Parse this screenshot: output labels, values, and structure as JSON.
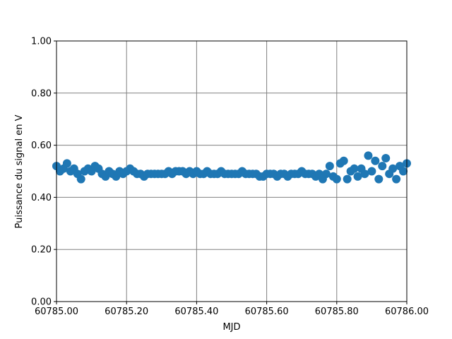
{
  "chart_data": {
    "type": "scatter",
    "xlabel": "MJD",
    "ylabel": "Puissance du signal en V",
    "color": "#1f77b4",
    "grid": true,
    "xlim": [
      60785.0,
      60786.0
    ],
    "ylim": [
      0.0,
      1.0
    ],
    "xticks": [
      {
        "value": 60785.0,
        "label": "60785.00"
      },
      {
        "value": 60785.2,
        "label": "60785.20"
      },
      {
        "value": 60785.4,
        "label": "60785.40"
      },
      {
        "value": 60785.6,
        "label": "60785.60"
      },
      {
        "value": 60785.8,
        "label": "60785.80"
      },
      {
        "value": 60786.0,
        "label": "60786.00"
      }
    ],
    "yticks": [
      {
        "value": 0.0,
        "label": "0.00"
      },
      {
        "value": 0.2,
        "label": "0.20"
      },
      {
        "value": 0.4,
        "label": "0.40"
      },
      {
        "value": 0.6,
        "label": "0.60"
      },
      {
        "value": 0.8,
        "label": "0.80"
      },
      {
        "value": 1.0,
        "label": "1.00"
      }
    ],
    "x": [
      60785.0,
      60785.01,
      60785.02,
      60785.03,
      60785.04,
      60785.05,
      60785.06,
      60785.07,
      60785.08,
      60785.09,
      60785.1,
      60785.11,
      60785.12,
      60785.13,
      60785.14,
      60785.15,
      60785.16,
      60785.17,
      60785.18,
      60785.19,
      60785.2,
      60785.21,
      60785.22,
      60785.23,
      60785.24,
      60785.25,
      60785.26,
      60785.27,
      60785.28,
      60785.29,
      60785.3,
      60785.31,
      60785.32,
      60785.33,
      60785.34,
      60785.35,
      60785.36,
      60785.37,
      60785.38,
      60785.39,
      60785.4,
      60785.41,
      60785.42,
      60785.43,
      60785.44,
      60785.45,
      60785.46,
      60785.47,
      60785.48,
      60785.49,
      60785.5,
      60785.51,
      60785.52,
      60785.53,
      60785.54,
      60785.55,
      60785.56,
      60785.57,
      60785.58,
      60785.59,
      60785.6,
      60785.61,
      60785.62,
      60785.63,
      60785.64,
      60785.65,
      60785.66,
      60785.67,
      60785.68,
      60785.69,
      60785.7,
      60785.71,
      60785.72,
      60785.73,
      60785.74,
      60785.75,
      60785.76,
      60785.77,
      60785.78,
      60785.79,
      60785.8,
      60785.81,
      60785.82,
      60785.83,
      60785.84,
      60785.85,
      60785.86,
      60785.87,
      60785.88,
      60785.89,
      60785.9,
      60785.91,
      60785.92,
      60785.93,
      60785.94,
      60785.95,
      60785.96,
      60785.97,
      60785.98,
      60785.99,
      60786.0
    ],
    "values": [
      0.52,
      0.5,
      0.51,
      0.53,
      0.5,
      0.51,
      0.49,
      0.47,
      0.5,
      0.51,
      0.5,
      0.52,
      0.51,
      0.49,
      0.48,
      0.5,
      0.49,
      0.48,
      0.5,
      0.49,
      0.5,
      0.51,
      0.5,
      0.49,
      0.49,
      0.48,
      0.49,
      0.49,
      0.49,
      0.49,
      0.49,
      0.49,
      0.5,
      0.49,
      0.5,
      0.5,
      0.5,
      0.49,
      0.5,
      0.49,
      0.5,
      0.49,
      0.49,
      0.5,
      0.49,
      0.49,
      0.49,
      0.5,
      0.49,
      0.49,
      0.49,
      0.49,
      0.49,
      0.5,
      0.49,
      0.49,
      0.49,
      0.49,
      0.48,
      0.48,
      0.49,
      0.49,
      0.49,
      0.48,
      0.49,
      0.49,
      0.48,
      0.49,
      0.49,
      0.49,
      0.5,
      0.49,
      0.49,
      0.49,
      0.48,
      0.49,
      0.47,
      0.49,
      0.52,
      0.48,
      0.47,
      0.53,
      0.54,
      0.47,
      0.5,
      0.51,
      0.48,
      0.51,
      0.49,
      0.56,
      0.5,
      0.54,
      0.47,
      0.52,
      0.55,
      0.49,
      0.51,
      0.47,
      0.52,
      0.5,
      0.53
    ]
  }
}
